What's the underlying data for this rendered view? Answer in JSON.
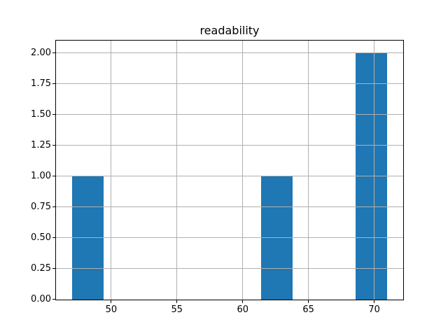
{
  "figure": {
    "background_color": "#ffffff"
  },
  "chart_data": {
    "type": "bar",
    "subtype": "histogram",
    "title": "readability",
    "xlabel": "",
    "ylabel": "",
    "bin_edges": [
      47.0,
      49.4,
      51.8,
      54.2,
      56.6,
      59.0,
      61.4,
      63.8,
      66.2,
      68.6,
      71.0
    ],
    "counts": [
      1,
      0,
      0,
      0,
      0,
      0,
      1,
      0,
      0,
      2
    ],
    "xlim": [
      45.8,
      72.2
    ],
    "ylim": [
      0,
      2.1
    ],
    "xticks": [
      50,
      55,
      60,
      65,
      70
    ],
    "xtick_labels": [
      "50",
      "55",
      "60",
      "65",
      "70"
    ],
    "yticks": [
      0.0,
      0.25,
      0.5,
      0.75,
      1.0,
      1.25,
      1.5,
      1.75,
      2.0
    ],
    "ytick_labels": [
      "0.00",
      "0.25",
      "0.50",
      "0.75",
      "1.00",
      "1.25",
      "1.50",
      "1.75",
      "2.00"
    ],
    "grid": true,
    "grid_over_bars": true,
    "legend": null,
    "bar_color": "#1f77b4",
    "grid_color": "#b0b0b0",
    "axis_color": "#000000",
    "text_color": "#000000"
  }
}
